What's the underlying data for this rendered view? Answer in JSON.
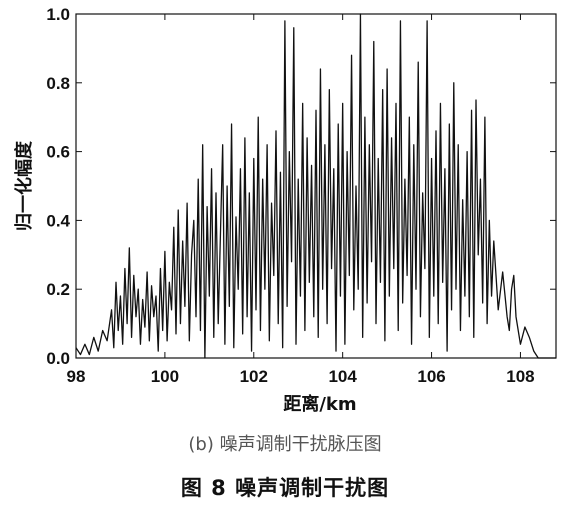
{
  "caption": {
    "sub": "(b) 噪声调制干扰脉压图",
    "main": "图 8    噪声调制干扰图"
  },
  "chart_data": {
    "type": "line",
    "title": "",
    "xlabel": "距离/km",
    "ylabel": "归一化幅度",
    "xlim": [
      98,
      108.8
    ],
    "ylim": [
      0,
      1.0
    ],
    "xticks": [
      98,
      100,
      102,
      104,
      106,
      108
    ],
    "yticks": [
      0.0,
      0.2,
      0.4,
      0.6,
      0.8,
      1.0
    ],
    "xtick_labels": [
      "98",
      "100",
      "102",
      "104",
      "106",
      "108"
    ],
    "ytick_labels": [
      "0.0",
      "0.2",
      "0.4",
      "0.6",
      "0.8",
      "1.0"
    ],
    "grid": false,
    "series": [
      {
        "color": "#111111",
        "x": [
          98.0,
          98.1,
          98.2,
          98.3,
          98.4,
          98.5,
          98.6,
          98.7,
          98.8,
          98.85,
          98.9,
          98.95,
          99.0,
          99.05,
          99.1,
          99.15,
          99.2,
          99.25,
          99.3,
          99.35,
          99.4,
          99.45,
          99.5,
          99.55,
          99.6,
          99.65,
          99.7,
          99.75,
          99.8,
          99.85,
          99.9,
          99.95,
          100.0,
          100.05,
          100.1,
          100.15,
          100.2,
          100.25,
          100.3,
          100.35,
          100.4,
          100.45,
          100.5,
          100.55,
          100.6,
          100.65,
          100.7,
          100.75,
          100.8,
          100.85,
          100.9,
          100.95,
          101.0,
          101.05,
          101.1,
          101.15,
          101.2,
          101.25,
          101.3,
          101.35,
          101.4,
          101.45,
          101.5,
          101.55,
          101.6,
          101.65,
          101.7,
          101.75,
          101.8,
          101.85,
          101.9,
          101.95,
          102.0,
          102.05,
          102.1,
          102.15,
          102.2,
          102.25,
          102.3,
          102.35,
          102.4,
          102.45,
          102.5,
          102.55,
          102.6,
          102.65,
          102.7,
          102.75,
          102.8,
          102.85,
          102.9,
          102.95,
          103.0,
          103.05,
          103.1,
          103.15,
          103.2,
          103.25,
          103.3,
          103.35,
          103.4,
          103.45,
          103.5,
          103.55,
          103.6,
          103.65,
          103.7,
          103.75,
          103.8,
          103.85,
          103.9,
          103.95,
          104.0,
          104.05,
          104.1,
          104.15,
          104.2,
          104.25,
          104.3,
          104.35,
          104.4,
          104.45,
          104.5,
          104.55,
          104.6,
          104.65,
          104.7,
          104.75,
          104.8,
          104.85,
          104.9,
          104.95,
          105.0,
          105.05,
          105.1,
          105.15,
          105.2,
          105.25,
          105.3,
          105.35,
          105.4,
          105.45,
          105.5,
          105.55,
          105.6,
          105.65,
          105.7,
          105.75,
          105.8,
          105.85,
          105.9,
          105.95,
          106.0,
          106.05,
          106.1,
          106.15,
          106.2,
          106.25,
          106.3,
          106.35,
          106.4,
          106.45,
          106.5,
          106.55,
          106.6,
          106.65,
          106.7,
          106.75,
          106.8,
          106.85,
          106.9,
          106.95,
          107.0,
          107.05,
          107.1,
          107.15,
          107.2,
          107.25,
          107.3,
          107.35,
          107.4,
          107.5,
          107.6,
          107.7,
          107.75,
          107.8,
          107.85,
          107.9,
          108.0,
          108.1,
          108.2,
          108.3,
          108.4,
          108.5,
          108.6,
          108.7,
          108.8
        ],
        "y": [
          0.03,
          0.01,
          0.04,
          0.01,
          0.06,
          0.02,
          0.08,
          0.05,
          0.14,
          0.03,
          0.22,
          0.08,
          0.18,
          0.04,
          0.26,
          0.1,
          0.32,
          0.06,
          0.24,
          0.12,
          0.2,
          0.04,
          0.17,
          0.09,
          0.25,
          0.05,
          0.21,
          0.12,
          0.18,
          0.02,
          0.26,
          0.08,
          0.31,
          0.05,
          0.22,
          0.14,
          0.38,
          0.07,
          0.43,
          0.1,
          0.34,
          0.15,
          0.45,
          0.05,
          0.3,
          0.4,
          0.12,
          0.52,
          0.08,
          0.62,
          0.0,
          0.44,
          0.18,
          0.55,
          0.06,
          0.48,
          0.1,
          0.36,
          0.62,
          0.04,
          0.5,
          0.15,
          0.68,
          0.03,
          0.41,
          0.2,
          0.55,
          0.07,
          0.64,
          0.12,
          0.48,
          0.02,
          0.58,
          0.14,
          0.7,
          0.08,
          0.52,
          0.2,
          0.62,
          0.05,
          0.45,
          0.24,
          0.66,
          0.1,
          0.54,
          0.03,
          0.98,
          0.15,
          0.6,
          0.28,
          0.96,
          0.04,
          0.52,
          0.18,
          0.74,
          0.08,
          0.64,
          0.22,
          0.56,
          0.12,
          0.72,
          0.06,
          0.84,
          0.2,
          0.62,
          0.1,
          0.78,
          0.26,
          0.55,
          0.02,
          0.68,
          0.18,
          0.74,
          0.04,
          0.6,
          0.24,
          0.88,
          0.14,
          0.5,
          0.2,
          1.0,
          0.06,
          0.7,
          0.16,
          0.62,
          0.28,
          0.92,
          0.1,
          0.58,
          0.22,
          0.78,
          0.05,
          0.84,
          0.18,
          0.64,
          0.26,
          0.74,
          0.08,
          0.98,
          0.16,
          0.52,
          0.24,
          0.7,
          0.04,
          0.62,
          0.2,
          0.86,
          0.12,
          0.48,
          0.26,
          0.98,
          0.06,
          0.58,
          0.18,
          0.66,
          0.1,
          0.74,
          0.22,
          0.55,
          0.02,
          0.68,
          0.14,
          0.8,
          0.2,
          0.62,
          0.08,
          0.46,
          0.18,
          0.6,
          0.12,
          0.72,
          0.06,
          0.75,
          0.3,
          0.52,
          0.16,
          0.7,
          0.1,
          0.4,
          0.18,
          0.34,
          0.14,
          0.25,
          0.12,
          0.08,
          0.2,
          0.24,
          0.12,
          0.04,
          0.09,
          0.06,
          0.02,
          0.0,
          0.0,
          0.0,
          0.0,
          0.0
        ]
      }
    ]
  }
}
